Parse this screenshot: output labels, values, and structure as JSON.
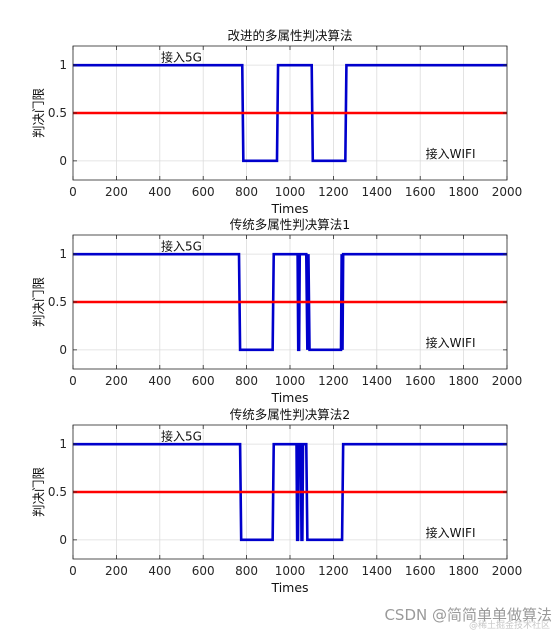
{
  "colors": {
    "series_blue": "#0000cc",
    "threshold_red": "#ff0000",
    "grid": "#dcdcdc",
    "axes": "#262626"
  },
  "chart_data": [
    {
      "type": "line",
      "title": "改进的多属性判决算法",
      "xlabel": "Times",
      "ylabel": "判决门限",
      "xlim": [
        0,
        2000
      ],
      "ylim": [
        -0.2,
        1.2
      ],
      "xticks": [
        0,
        200,
        400,
        600,
        800,
        1000,
        1200,
        1400,
        1600,
        1800,
        2000
      ],
      "yticks": [
        0,
        0.5,
        1
      ],
      "ytick_labels": [
        "0",
        "0.5",
        "1"
      ],
      "grid": true,
      "annotations": [
        {
          "text": "接入5G",
          "x": 500,
          "y": 1.08
        },
        {
          "text": "接入WIFI",
          "x": 1740,
          "y": 0.07
        }
      ],
      "series": [
        {
          "color": "#0000cc",
          "x": [
            0,
            780,
            785,
            940,
            945,
            1100,
            1105,
            1255,
            1260,
            2000
          ],
          "y": [
            1,
            1,
            0,
            0,
            1,
            1,
            0,
            0,
            1,
            1
          ]
        },
        {
          "color": "#ff0000",
          "x": [
            0,
            2000
          ],
          "y": [
            0.5,
            0.5
          ]
        }
      ]
    },
    {
      "type": "line",
      "title": "传统多属性判决算法1",
      "xlabel": "Times",
      "ylabel": "判决门限",
      "xlim": [
        0,
        2000
      ],
      "ylim": [
        -0.2,
        1.2
      ],
      "xticks": [
        0,
        200,
        400,
        600,
        800,
        1000,
        1200,
        1400,
        1600,
        1800,
        2000
      ],
      "yticks": [
        0,
        0.5,
        1
      ],
      "ytick_labels": [
        "0",
        "0.5",
        "1"
      ],
      "grid": true,
      "annotations": [
        {
          "text": "接入5G",
          "x": 500,
          "y": 1.08
        },
        {
          "text": "接入WIFI",
          "x": 1740,
          "y": 0.07
        }
      ],
      "series": [
        {
          "color": "#0000cc",
          "x": [
            0,
            765,
            770,
            920,
            925,
            1035,
            1038,
            1042,
            1045,
            1075,
            1080,
            1085,
            1090,
            1235,
            1238,
            1242,
            1245,
            2000
          ],
          "y": [
            1,
            1,
            0,
            0,
            1,
            1,
            0,
            0,
            1,
            1,
            0,
            1,
            0,
            0,
            1,
            0,
            1,
            1
          ]
        },
        {
          "color": "#ff0000",
          "x": [
            0,
            2000
          ],
          "y": [
            0.5,
            0.5
          ]
        }
      ]
    },
    {
      "type": "line",
      "title": "传统多属性判决算法2",
      "xlabel": "Times",
      "ylabel": "判决门限",
      "xlim": [
        0,
        2000
      ],
      "ylim": [
        -0.2,
        1.2
      ],
      "xticks": [
        0,
        200,
        400,
        600,
        800,
        1000,
        1200,
        1400,
        1600,
        1800,
        2000
      ],
      "yticks": [
        0,
        0.5,
        1
      ],
      "ytick_labels": [
        "0",
        "0.5",
        "1"
      ],
      "grid": true,
      "annotations": [
        {
          "text": "接入5G",
          "x": 500,
          "y": 1.08
        },
        {
          "text": "接入WIFI",
          "x": 1740,
          "y": 0.07
        }
      ],
      "series": [
        {
          "color": "#0000cc",
          "x": [
            0,
            770,
            775,
            920,
            925,
            1030,
            1033,
            1037,
            1040,
            1050,
            1053,
            1057,
            1060,
            1075,
            1080,
            1240,
            1245,
            2000
          ],
          "y": [
            1,
            1,
            0,
            0,
            1,
            1,
            0,
            0,
            1,
            1,
            0,
            0,
            1,
            1,
            0,
            0,
            1,
            1
          ]
        },
        {
          "color": "#ff0000",
          "x": [
            0,
            2000
          ],
          "y": [
            0.5,
            0.5
          ]
        }
      ]
    }
  ],
  "watermark": {
    "text": "CSDN @简简单单做算法",
    "sub": "@稀土掘金技术社区"
  }
}
